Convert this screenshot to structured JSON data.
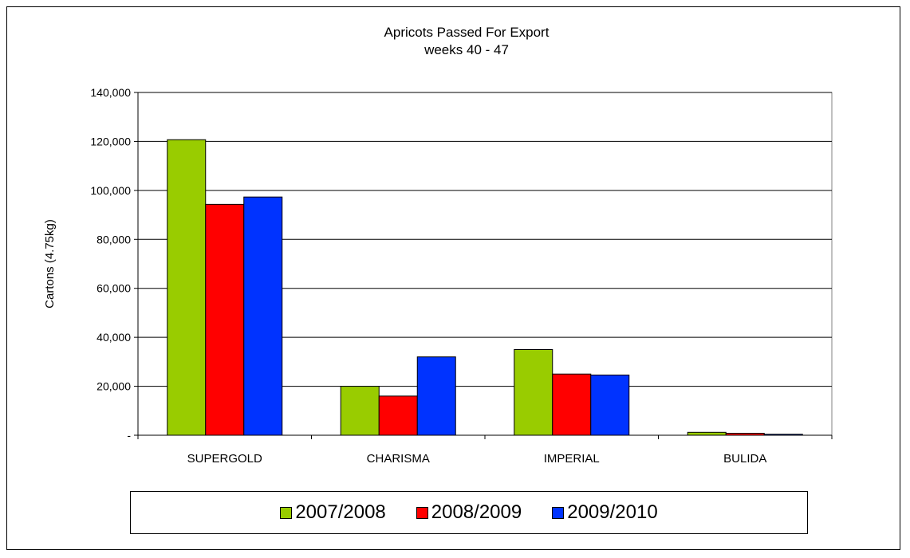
{
  "chart_data": {
    "type": "bar",
    "title": "Apricots Passed For Export",
    "subtitle": "weeks 40 - 47",
    "xlabel": "",
    "ylabel": "Cartons (4.75kg)",
    "ylim": [
      0,
      140000
    ],
    "yticks": [
      0,
      20000,
      40000,
      60000,
      80000,
      100000,
      120000,
      140000
    ],
    "ytick_labels": [
      "-",
      "20,000",
      "40,000",
      "60,000",
      "80,000",
      "100,000",
      "120,000",
      "140,000"
    ],
    "grid": true,
    "legend_position": "bottom",
    "categories": [
      "SUPERGOLD",
      "CHARISMA",
      "IMPERIAL",
      "BULIDA"
    ],
    "series": [
      {
        "name": "2007/2008",
        "color": "#99cc00",
        "values": [
          120700,
          20000,
          35000,
          1200
        ]
      },
      {
        "name": "2008/2009",
        "color": "#ff0000",
        "values": [
          94300,
          16000,
          25000,
          800
        ]
      },
      {
        "name": "2009/2010",
        "color": "#0033ff",
        "values": [
          97300,
          32000,
          24600,
          400
        ]
      }
    ]
  }
}
